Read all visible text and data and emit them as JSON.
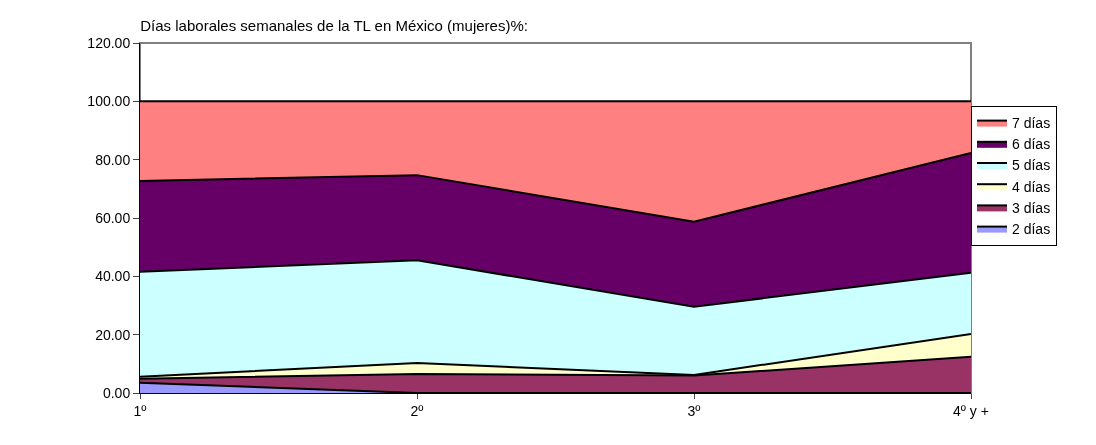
{
  "chart_data": {
    "type": "area",
    "stacked": true,
    "title": "Días laborales semanales de la TL en México (mujeres)%:",
    "categories": [
      "1º",
      "2º",
      "3º",
      "4º y +"
    ],
    "series": [
      {
        "name": "2 días",
        "color": "#9999ff",
        "values": [
          3.5,
          0,
          0,
          0
        ]
      },
      {
        "name": "3 días",
        "color": "#993366",
        "values": [
          1.4,
          6.5,
          6,
          12.4
        ]
      },
      {
        "name": "4 días",
        "color": "#ffffcc",
        "values": [
          0.7,
          3.8,
          0.2,
          7.8
        ]
      },
      {
        "name": "5 días",
        "color": "#ccffff",
        "values": [
          36,
          35.2,
          23.4,
          21
        ]
      },
      {
        "name": "6 días",
        "color": "#660066",
        "values": [
          31.1,
          29.2,
          29.1,
          41.1
        ]
      },
      {
        "name": "7 días",
        "color": "#ff8080",
        "values": [
          27.3,
          25.3,
          41.3,
          17.7
        ]
      }
    ],
    "ylim": [
      0,
      120
    ],
    "yticks": [
      {
        "value": 0,
        "label": "0.00"
      },
      {
        "value": 20,
        "label": "20.00"
      },
      {
        "value": 40,
        "label": "40.00"
      },
      {
        "value": 60,
        "label": "60.00"
      },
      {
        "value": 80,
        "label": "80.00"
      },
      {
        "value": 100,
        "label": "100.00"
      },
      {
        "value": 120,
        "label": "120.00"
      }
    ],
    "grid": false,
    "legend": "right"
  }
}
